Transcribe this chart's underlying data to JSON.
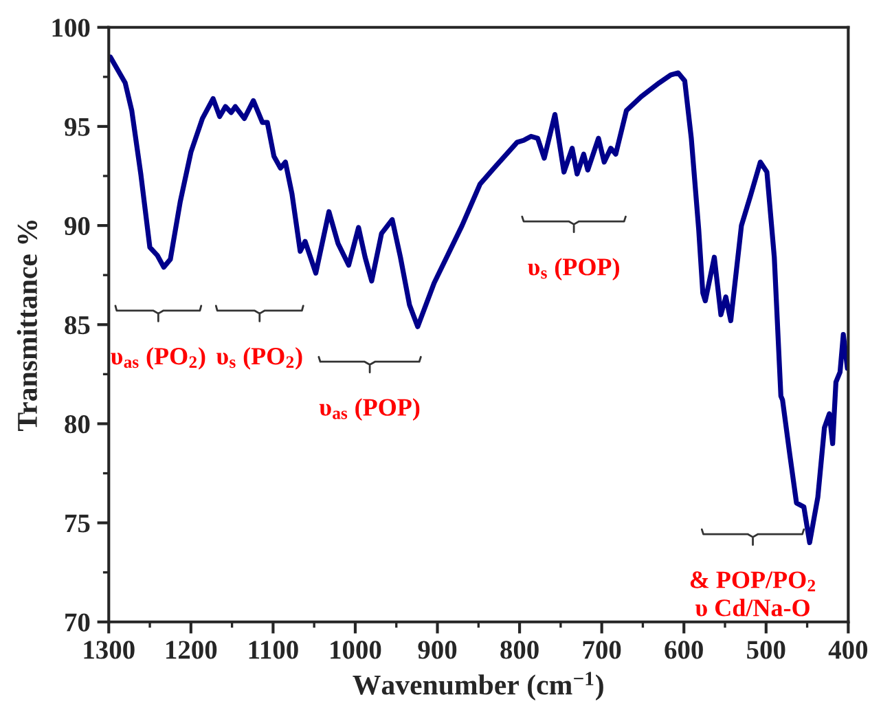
{
  "chart_data": {
    "type": "line",
    "xlabel": "Wavenumber (cm$^{−1}$)",
    "ylabel": "Transmittance %",
    "xlim": [
      1300,
      400
    ],
    "ylim": [
      70,
      100
    ],
    "xticks": [
      1300,
      1200,
      1100,
      1000,
      900,
      800,
      700,
      600,
      500,
      400
    ],
    "yticks": [
      70,
      75,
      80,
      85,
      90,
      95,
      100
    ],
    "grid": false,
    "legend": false,
    "marker": "none",
    "line_style": "solid",
    "series": [
      {
        "color": "#00008b",
        "x": [
          1298,
          1280,
          1272,
          1261,
          1250,
          1241,
          1233,
          1225,
          1213,
          1200,
          1186,
          1173,
          1165,
          1158,
          1151,
          1146,
          1135,
          1124,
          1113,
          1107,
          1099,
          1091,
          1085,
          1077,
          1067,
          1061,
          1048,
          1032,
          1021,
          1008,
          996,
          988,
          980,
          968,
          955,
          945,
          934,
          924,
          904,
          870,
          848,
          831,
          803,
          795,
          786,
          778,
          770,
          757,
          746,
          736,
          730,
          722,
          717,
          704,
          697,
          689,
          683,
          670,
          652,
          630,
          616,
          607,
          599,
          591,
          582,
          577,
          574,
          563,
          555,
          549,
          543,
          530,
          519,
          507,
          499,
          490,
          482,
          480,
          471,
          463,
          454,
          447,
          437,
          429,
          423,
          419,
          415,
          410,
          406,
          401
        ],
        "values": [
          98.5,
          97.2,
          95.8,
          92.6,
          88.9,
          88.5,
          87.9,
          88.3,
          91.2,
          93.7,
          95.4,
          96.4,
          95.5,
          96.0,
          95.7,
          96.0,
          95.4,
          96.3,
          95.2,
          95.2,
          93.5,
          92.9,
          93.2,
          91.6,
          88.7,
          89.2,
          87.6,
          90.7,
          89.1,
          88.0,
          89.9,
          88.4,
          87.2,
          89.6,
          90.3,
          88.4,
          86.0,
          84.9,
          87.1,
          90.0,
          92.1,
          92.9,
          94.2,
          94.3,
          94.5,
          94.4,
          93.4,
          95.6,
          92.7,
          93.9,
          92.6,
          93.6,
          92.8,
          94.4,
          93.2,
          93.9,
          93.6,
          95.8,
          96.5,
          97.2,
          97.6,
          97.7,
          97.3,
          94.4,
          89.8,
          86.6,
          86.2,
          88.4,
          85.5,
          86.4,
          85.2,
          90.0,
          91.5,
          93.2,
          92.7,
          88.4,
          81.4,
          81.2,
          78.4,
          76.0,
          75.8,
          74.0,
          76.3,
          79.8,
          80.5,
          79.0,
          82.1,
          82.6,
          84.5,
          82.8
        ]
      }
    ],
    "annotations": [
      "υ$_{as}$ (PO$_{2}$)",
      "υ$_{s}$ (PO$_{2}$)",
      "υ$_{as}$ (POP)",
      "υ$_{s}$ (POP)",
      "& POP/PO$_{2}$",
      "υ Cd/Na-O"
    ]
  }
}
